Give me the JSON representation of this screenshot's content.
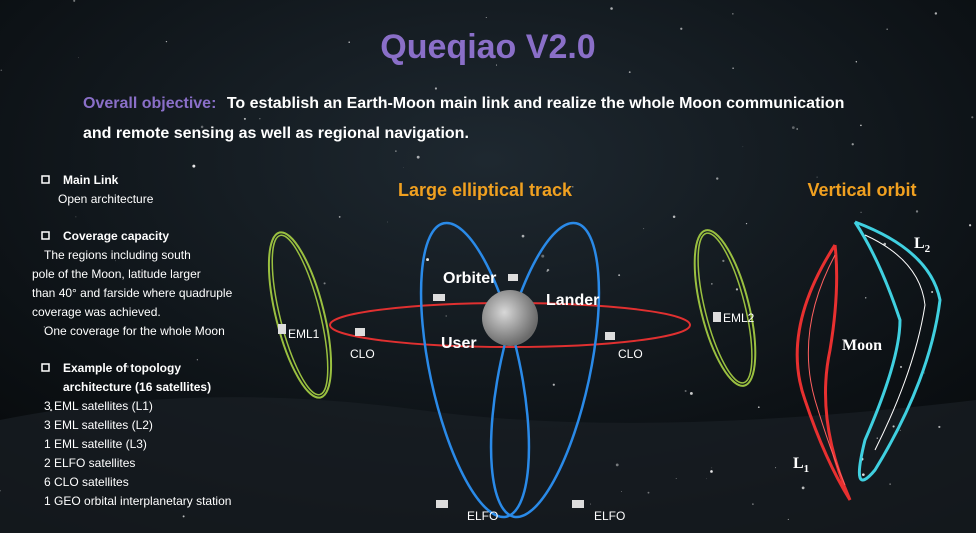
{
  "title": "Queqiao V2.0",
  "objective": {
    "label": "Overall objective:",
    "lines": [
      "To establish an Earth-Moon main link and realize the whole Moon communication",
      "and remote sensing as well as regional navigation."
    ]
  },
  "sections": [
    {
      "heading": [
        "Main Link"
      ],
      "lines": [
        "Open architecture"
      ]
    },
    {
      "heading": [
        "Coverage capacity"
      ],
      "lines": [
        "The regions including south",
        "pole of the Moon, latitude larger",
        "than 40° and farside where quadruple",
        "coverage was achieved.",
        "One coverage for the whole Moon"
      ]
    },
    {
      "heading": [
        "Example of topology",
        "architecture (16 satellites)"
      ],
      "lines": [
        "3 EML satellites (L1)",
        "3 EML satellites (L2)",
        "1 EML satellite (L3)",
        "2 ELFO satellites",
        "6 CLO satellites",
        "1 GEO orbital interplanetary station"
      ]
    }
  ],
  "track": {
    "title": "Large elliptical track",
    "orbiter": "Orbiter",
    "lander": "Lander",
    "user": "User",
    "eml1": "EML1",
    "eml2": "EML2",
    "clo": [
      "CLO",
      "CLO"
    ],
    "elfo": [
      "ELFO",
      "ELFO"
    ]
  },
  "vertical": {
    "title": "Vertical orbit",
    "moon": "Moon",
    "l1": {
      "base": "L",
      "sub": "1"
    },
    "l2": {
      "base": "L",
      "sub": "2"
    }
  }
}
